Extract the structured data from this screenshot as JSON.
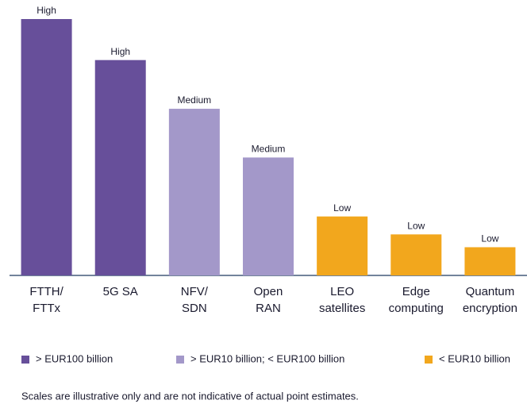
{
  "chart_data": {
    "type": "bar",
    "categories": [
      [
        "FTTH/",
        "FTTx"
      ],
      [
        "5G SA"
      ],
      [
        "NFV/",
        "SDN"
      ],
      [
        "Open",
        "RAN"
      ],
      [
        "LEO",
        "satellites"
      ],
      [
        "Edge",
        "computing"
      ],
      [
        "Quantum",
        "encryption"
      ]
    ],
    "values": [
      100,
      84,
      65,
      46,
      23,
      16,
      11
    ],
    "value_labels": [
      "High",
      "High",
      "Medium",
      "Medium",
      "Low",
      "Low",
      "Low"
    ],
    "colors": [
      "#674f9a",
      "#674f9a",
      "#a398c9",
      "#a398c9",
      "#f2a71d",
      "#f2a71d",
      "#f2a71d"
    ],
    "ylim": [
      0,
      100
    ],
    "legend": [
      {
        "name": "> EUR100 billion",
        "color": "#674f9a"
      },
      {
        "name": "> EUR10 billion; < EUR100 billion",
        "color": "#a398c9"
      },
      {
        "name": "< EUR10 billion",
        "color": "#f2a71d"
      }
    ],
    "note": "Scales are illustrative only and are not indicative of actual point estimates."
  }
}
